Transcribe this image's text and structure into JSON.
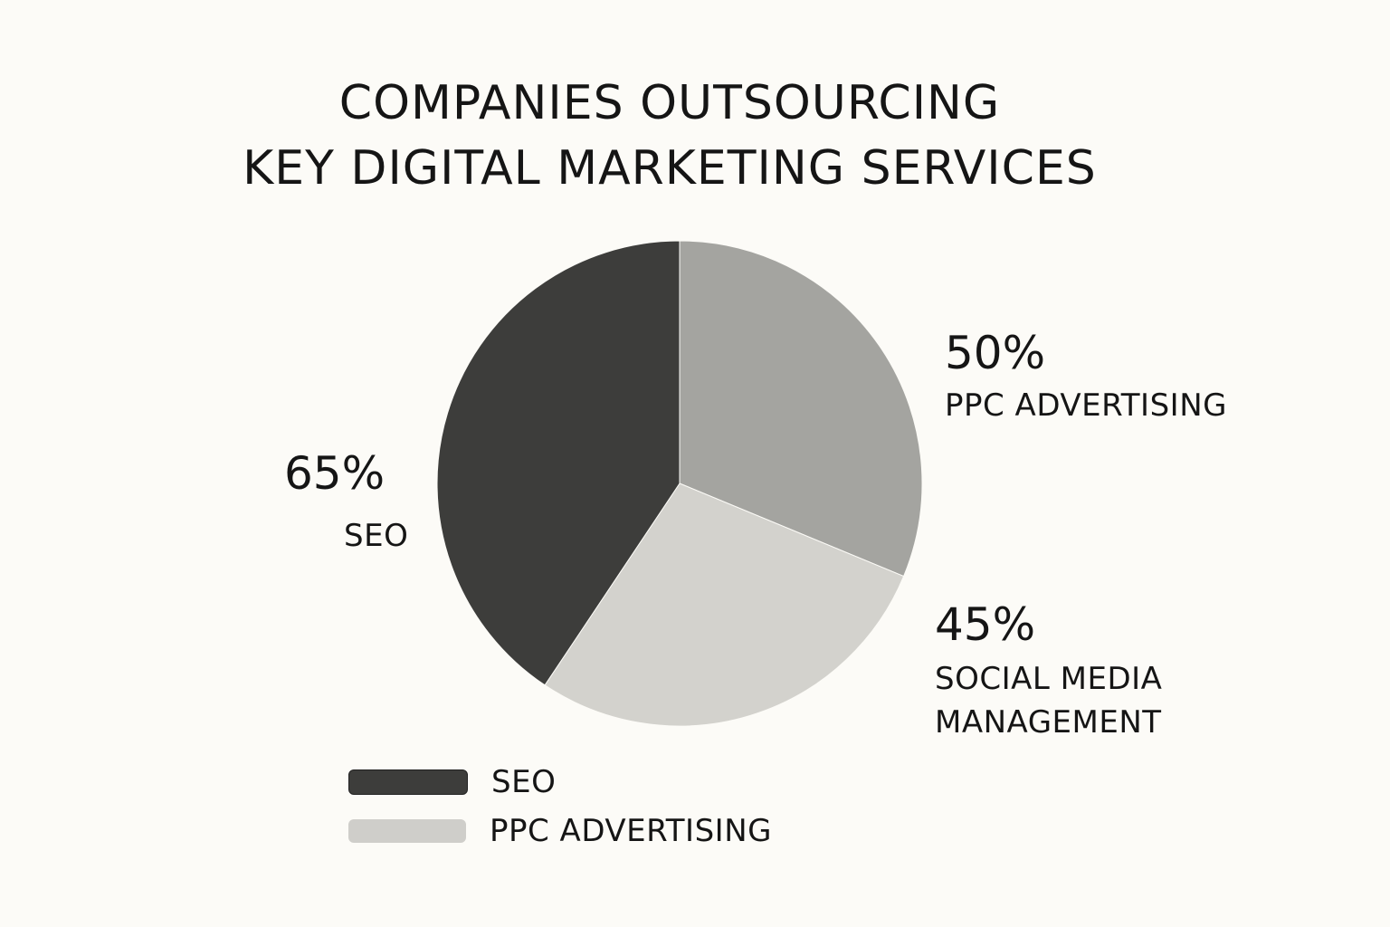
{
  "chart_data": {
    "type": "pie",
    "title_lines": [
      "COMPANIES OUTSOURCING",
      "KEY DIGITAL MARKETING SERVICES"
    ],
    "slices": [
      {
        "label": "SEO",
        "value": 65,
        "value_label": "65%",
        "color": "#3d3d3b"
      },
      {
        "label": "PPC ADVERTISING",
        "value": 50,
        "value_label": "50%",
        "color": "#a4a4a0"
      },
      {
        "label": "SOCIAL MEDIA MANAGEMENT",
        "label_lines": [
          "SOCIAL MEDIA",
          "MANAGEMENT"
        ],
        "value": 45,
        "value_label": "45%",
        "color": "#d3d2cd"
      }
    ],
    "legend": {
      "placement": "bottom-left",
      "items": [
        {
          "label": "SEO",
          "color": "#3d3d3b"
        },
        {
          "label": "PPC ADVERTISING",
          "color": "#cfceca"
        }
      ]
    }
  }
}
